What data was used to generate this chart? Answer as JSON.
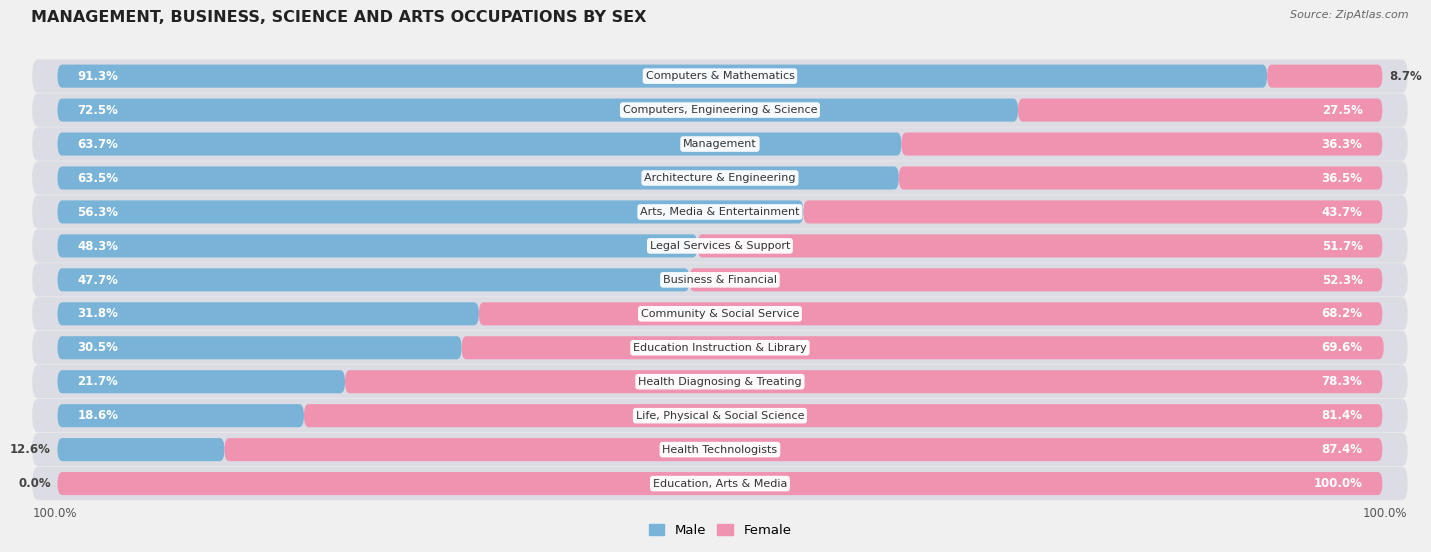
{
  "title": "MANAGEMENT, BUSINESS, SCIENCE AND ARTS OCCUPATIONS BY SEX",
  "source": "Source: ZipAtlas.com",
  "categories": [
    "Computers & Mathematics",
    "Computers, Engineering & Science",
    "Management",
    "Architecture & Engineering",
    "Arts, Media & Entertainment",
    "Legal Services & Support",
    "Business & Financial",
    "Community & Social Service",
    "Education Instruction & Library",
    "Health Diagnosing & Treating",
    "Life, Physical & Social Science",
    "Health Technologists",
    "Education, Arts & Media"
  ],
  "male": [
    91.3,
    72.5,
    63.7,
    63.5,
    56.3,
    48.3,
    47.7,
    31.8,
    30.5,
    21.7,
    18.6,
    12.6,
    0.0
  ],
  "female": [
    8.7,
    27.5,
    36.3,
    36.5,
    43.7,
    51.7,
    52.3,
    68.2,
    69.6,
    78.3,
    81.4,
    87.4,
    100.0
  ],
  "male_color": "#7ab3d8",
  "female_color": "#f093b0",
  "bg_color": "#f0f0f0",
  "row_bg": "#e8e8ec",
  "bar_bg": "#dcdce4",
  "title_fontsize": 11.5,
  "label_fontsize": 8.5,
  "category_fontsize": 8,
  "source_fontsize": 8
}
